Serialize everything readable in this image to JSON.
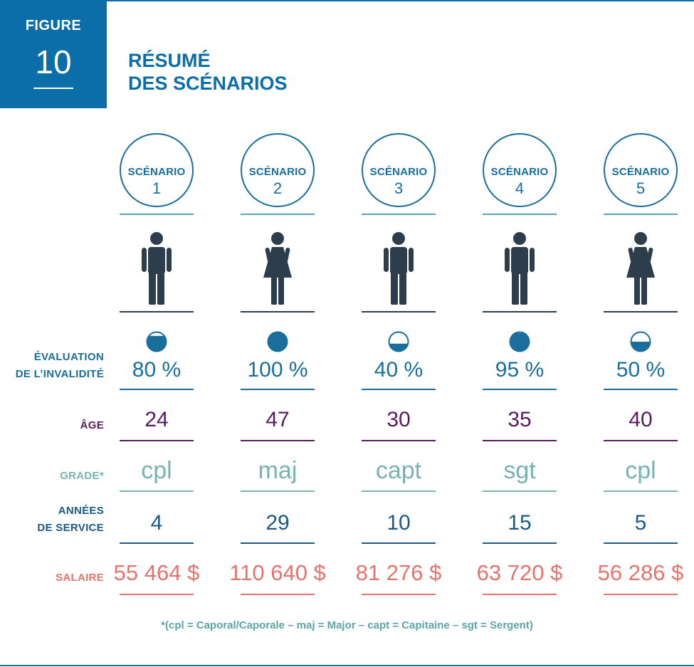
{
  "figure": {
    "label": "FIGURE",
    "number": "10"
  },
  "title": {
    "line1": "RÉSUMÉ",
    "line2": "DES SCÉNARIOS"
  },
  "row_labels": {
    "evaluation": [
      "ÉVALUATION",
      "DE L’INVALIDITÉ"
    ],
    "age": "ÂGE",
    "grade": "GRADE*",
    "years": [
      "ANNÉES",
      "DE SERVICE"
    ],
    "salary": "SALAIRE"
  },
  "scenarios": [
    {
      "label": "SCÉNARIO",
      "number": "1",
      "gender": "male",
      "evaluation": "80 %",
      "evaluation_fraction": 0.8,
      "age": "24",
      "grade": "cpl",
      "years": "4",
      "salary": "55 464 $"
    },
    {
      "label": "SCÉNARIO",
      "number": "2",
      "gender": "female",
      "evaluation": "100 %",
      "evaluation_fraction": 1.0,
      "age": "47",
      "grade": "maj",
      "years": "29",
      "salary": "110 640 $"
    },
    {
      "label": "SCÉNARIO",
      "number": "3",
      "gender": "male",
      "evaluation": "40 %",
      "evaluation_fraction": 0.4,
      "age": "30",
      "grade": "capt",
      "years": "10",
      "salary": "81 276 $"
    },
    {
      "label": "SCÉNARIO",
      "number": "4",
      "gender": "male",
      "evaluation": "95 %",
      "evaluation_fraction": 0.95,
      "age": "35",
      "grade": "sgt",
      "years": "15",
      "salary": "63 720 $"
    },
    {
      "label": "SCÉNARIO",
      "number": "5",
      "gender": "female",
      "evaluation": "50 %",
      "evaluation_fraction": 0.5,
      "age": "40",
      "grade": "cpl",
      "years": "5",
      "salary": "56 286 $"
    }
  ],
  "footnote": "*(cpl = Caporal/Caporale – maj = Major – capt = Capitaine – sgt = Sergent)",
  "colors": {
    "primary_blue": "#0b6ea9",
    "dial_blue": "#1a6e9b",
    "person_dark": "#2e3d4c",
    "age_purple": "#5a1a5e",
    "grade_teal": "#79b3b0",
    "years_blue": "#1a5a83",
    "salary_coral": "#e7736d"
  }
}
